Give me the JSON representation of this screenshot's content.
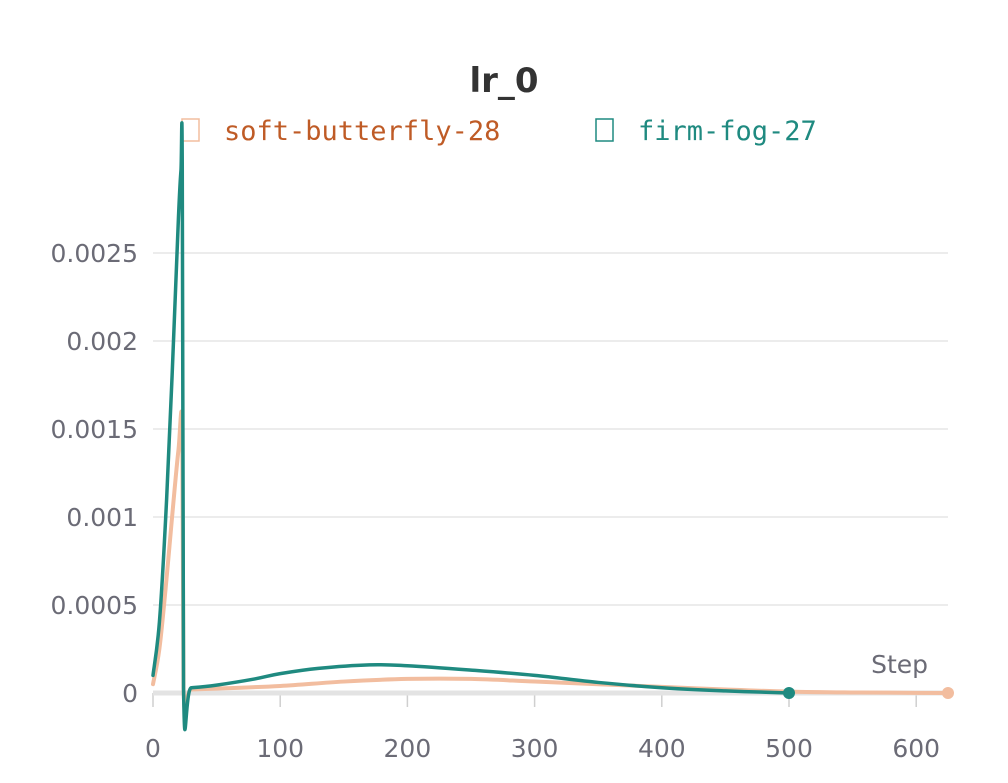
{
  "chart_data": {
    "type": "line",
    "title": "lr_0",
    "xlabel": "Step",
    "ylabel": "",
    "xlim": [
      0,
      625
    ],
    "ylim": [
      0,
      0.003
    ],
    "x_ticks": [
      0,
      100,
      200,
      300,
      400,
      500,
      600
    ],
    "y_ticks": [
      0,
      0.0005,
      0.001,
      0.0015,
      0.002,
      0.0025
    ],
    "grid": true,
    "legend_position": "top",
    "series": [
      {
        "name": "soft-butterfly-28",
        "color": "#f2bd9f",
        "legend_color": "#bf5b26",
        "x": [
          0,
          5,
          10,
          15,
          20,
          23,
          24,
          30,
          50,
          100,
          150,
          200,
          250,
          300,
          350,
          400,
          450,
          500,
          550,
          600,
          625
        ],
        "y": [
          5e-05,
          0.00025,
          0.0006,
          0.001,
          0.00138,
          0.0015,
          2e-05,
          2e-05,
          2.5e-05,
          4e-05,
          6.5e-05,
          8e-05,
          8e-05,
          6.5e-05,
          5e-05,
          3.5e-05,
          2e-05,
          8e-06,
          3e-06,
          1e-06,
          0.0
        ]
      },
      {
        "name": "firm-fog-27",
        "color": "#1f8a80",
        "legend_color": "#1f8a80",
        "x": [
          0,
          5,
          10,
          15,
          20,
          22,
          23,
          24,
          30,
          50,
          80,
          100,
          130,
          170,
          200,
          250,
          300,
          350,
          400,
          450,
          500
        ],
        "y": [
          0.0001,
          0.0004,
          0.001,
          0.0018,
          0.0027,
          0.00297,
          0.003,
          3e-05,
          3e-05,
          4.5e-05,
          8e-05,
          0.00011,
          0.00014,
          0.00016,
          0.000155,
          0.00013,
          0.0001,
          6e-05,
          3e-05,
          1.2e-05,
          0.0
        ]
      }
    ]
  }
}
